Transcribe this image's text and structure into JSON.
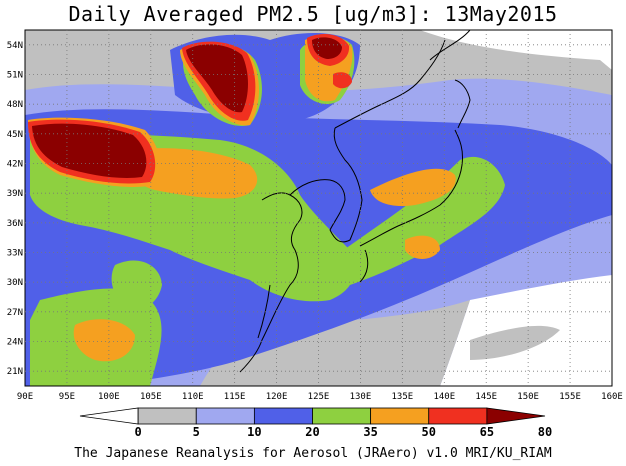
{
  "title": "Daily Averaged PM2.5 [ug/m3]: 13May2015",
  "footer": "The Japanese Reanalysis for Aerosol (JRAero) v1.0 MRI/KU_RIAM",
  "lon_labels": [
    "90E",
    "95E",
    "100E",
    "105E",
    "110E",
    "115E",
    "120E",
    "125E",
    "130E",
    "135E",
    "140E",
    "145E",
    "150E",
    "155E",
    "160E"
  ],
  "lat_labels": [
    "54N",
    "51N",
    "48N",
    "45N",
    "42N",
    "39N",
    "36N",
    "33N",
    "30N",
    "27N",
    "24N",
    "21N"
  ],
  "colorbar": {
    "labels": [
      "0",
      "5",
      "10",
      "20",
      "35",
      "50",
      "65",
      "80"
    ],
    "colors": [
      "#ffffff",
      "#c0c0c0",
      "#a0a8f0",
      "#5060e8",
      "#8ed040",
      "#f5a020",
      "#f03020",
      "#8b0000"
    ]
  }
}
